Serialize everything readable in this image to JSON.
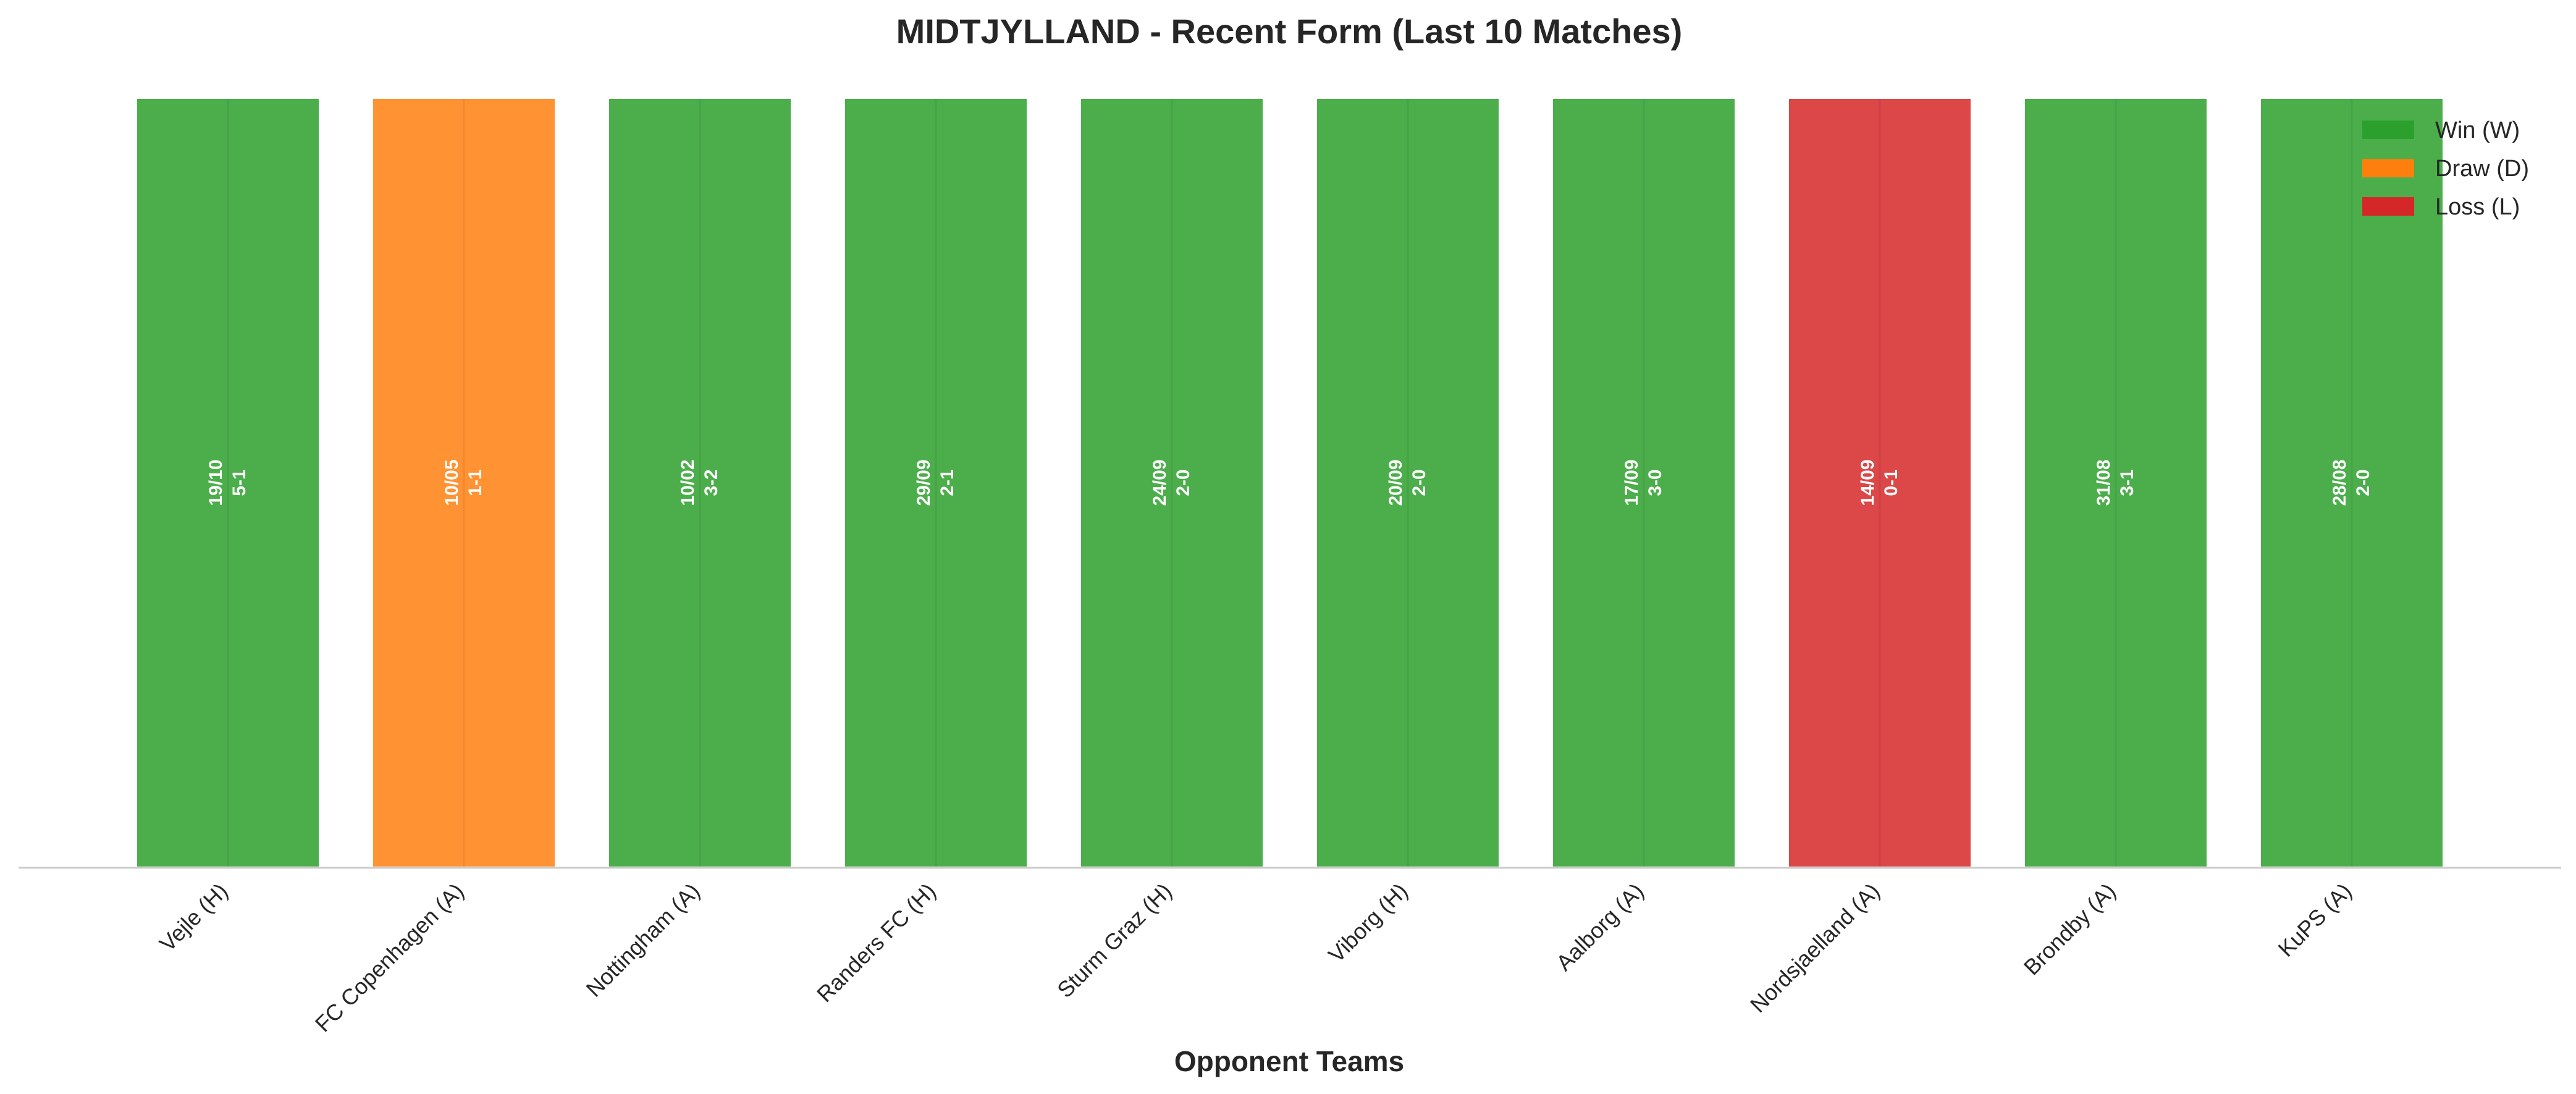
{
  "chart_data": {
    "type": "bar",
    "title": "MIDTJYLLAND - Recent Form (Last 10 Matches)",
    "xlabel": "Opponent Teams",
    "ylabel": "",
    "ylim": [
      0,
      1
    ],
    "grid": false,
    "legend_position": "top-right",
    "categories": [
      "Vejle (H)",
      "FC Copenhagen (A)",
      "Nottingham (A)",
      "Randers FC (H)",
      "Sturm Graz (H)",
      "Viborg (H)",
      "Aalborg (A)",
      "Nordsjaelland (A)",
      "Brondby (A)",
      "KuPS (A)"
    ],
    "values": [
      1,
      1,
      1,
      1,
      1,
      1,
      1,
      1,
      1,
      1
    ],
    "results": [
      "W",
      "D",
      "W",
      "W",
      "W",
      "W",
      "W",
      "L",
      "W",
      "W"
    ],
    "dates": [
      "19/10",
      "10/05",
      "10/02",
      "29/09",
      "24/09",
      "20/09",
      "17/09",
      "14/09",
      "31/08",
      "28/08"
    ],
    "scores": [
      "5-1",
      "1-1",
      "3-2",
      "2-1",
      "2-0",
      "2-0",
      "3-0",
      "0-1",
      "3-1",
      "2-0"
    ],
    "legend": [
      {
        "key": "W",
        "label": "Win (W)",
        "color": "#2ca02c"
      },
      {
        "key": "D",
        "label": "Draw (D)",
        "color": "#ff7f0e"
      },
      {
        "key": "L",
        "label": "Loss (L)",
        "color": "#d62728"
      }
    ]
  }
}
